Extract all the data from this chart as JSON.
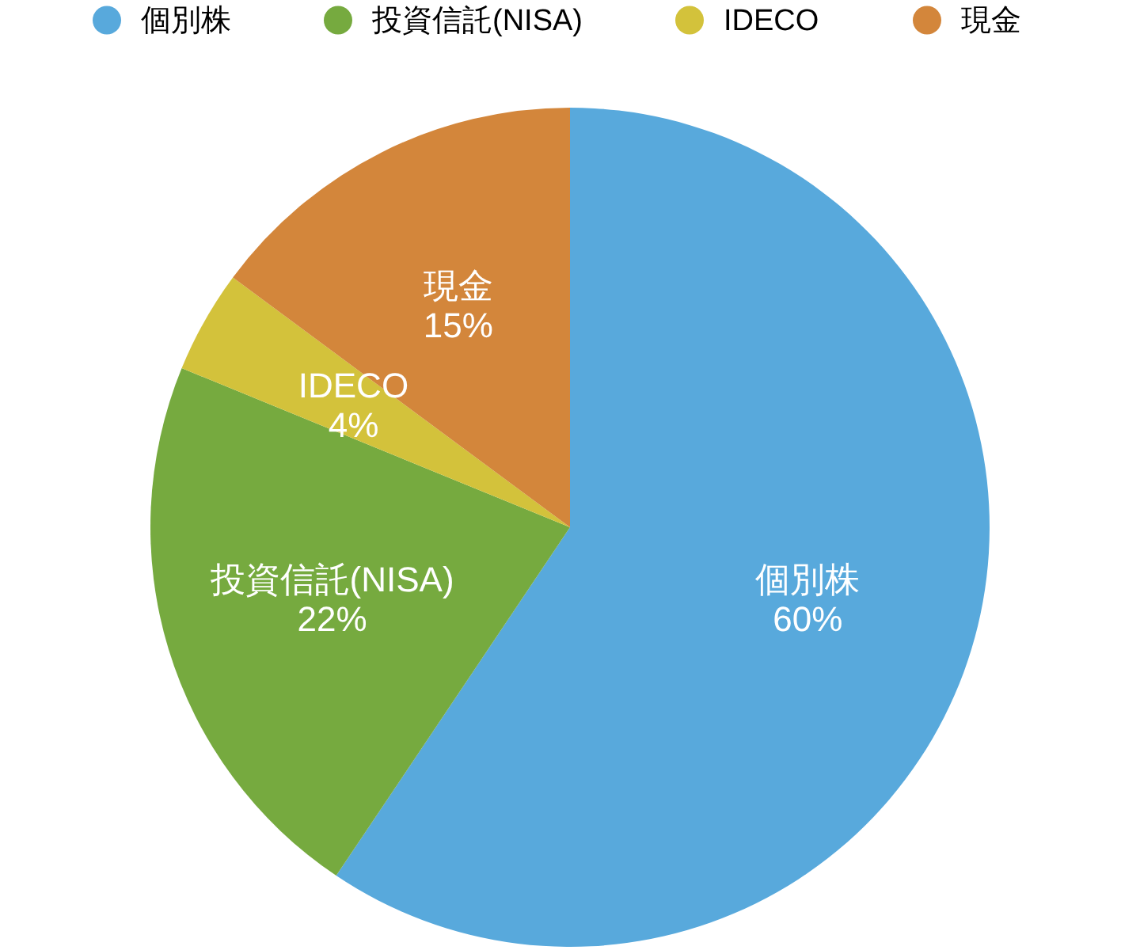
{
  "chart_data": {
    "type": "pie",
    "categories": [
      "個別株",
      "投資信託(NISA)",
      "IDECO",
      "現金"
    ],
    "values": [
      60,
      22,
      4,
      15
    ],
    "colors": [
      "#58a9dc",
      "#76aa3f",
      "#d3c23b",
      "#d3863b"
    ],
    "value_labels": [
      "60%",
      "22%",
      "4%",
      "15%"
    ],
    "legend": "top"
  }
}
